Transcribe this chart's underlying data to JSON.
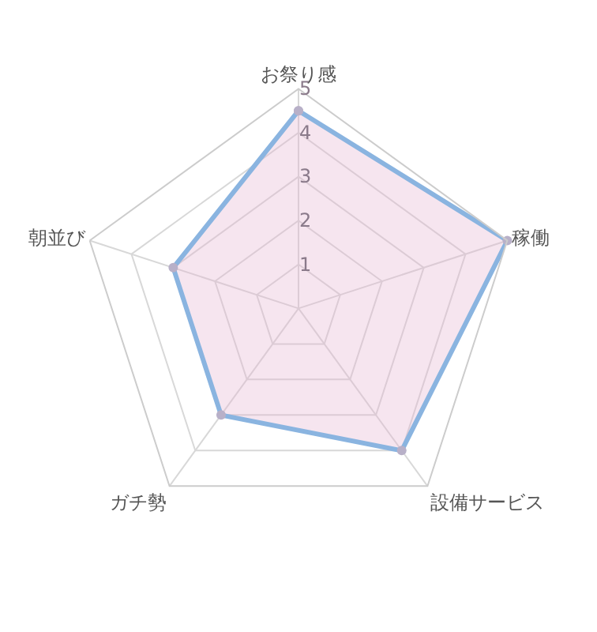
{
  "chart_data": {
    "type": "radar",
    "categories": [
      "お祭り感",
      "稼働",
      "設備サービス",
      "ガチ勢",
      "朝並び"
    ],
    "series": [
      {
        "color": "#8ab4e0",
        "values": [
          4.5,
          5,
          4,
          3,
          3
        ]
      }
    ],
    "ylim": [
      0,
      5
    ],
    "yticks": [
      1,
      2,
      3,
      4,
      5
    ],
    "grid": true,
    "marker": "circle",
    "legend": false
  }
}
